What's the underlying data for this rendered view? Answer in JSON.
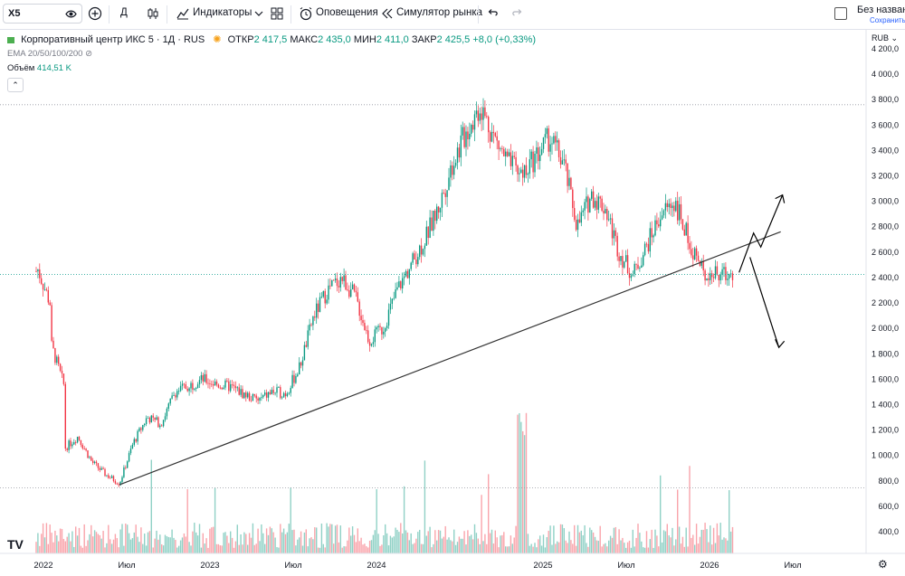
{
  "toolbar": {
    "symbol": "X5",
    "interval": "Д",
    "indicators_label": "Индикаторы",
    "alerts_label": "Оповещения",
    "replay_label": "Симулятор рынка",
    "layout_title": "Без названи",
    "layout_sub": "Сохранить"
  },
  "legend": {
    "title": "Корпоративный центр ИКС 5 · 1Д · RUS",
    "open_label": "ОТКР",
    "open": "2 417,5",
    "high_label": "МАКС",
    "high": "2 435,0",
    "low_label": "МИН",
    "low": "2 411,0",
    "close_label": "ЗАКР",
    "close": "2 425,5",
    "change": "+8,0 (+0,33%)",
    "ema": "EMA 20/50/100/200",
    "volume_label": "Объём",
    "volume_value": "414,51 K"
  },
  "currency": "RUB",
  "colors": {
    "up": "#089981",
    "down": "#f23645",
    "trend": "#333333",
    "price_tag": "#26a69a"
  },
  "chart_data": {
    "type": "candlestick",
    "price_axis_ticks": [
      "4 200,0",
      "4 000,0",
      "3 800,0",
      "3 600,0",
      "3 400,0",
      "3 200,0",
      "3 000,0",
      "2 800,0",
      "2 600,0",
      "2 400,0",
      "2 200,0",
      "2 000,0",
      "1 800,0",
      "1 600,0",
      "1 400,0",
      "1 200,0",
      "1 000,0",
      "800,0",
      "600,0",
      "400,0"
    ],
    "time_axis_ticks": [
      "2022",
      "Июл",
      "2023",
      "Июл",
      "2024",
      "2025",
      "Июл",
      "2026",
      "Июл"
    ],
    "last_price": "2 425,5",
    "ylim": [
      300,
      4300
    ],
    "close_path": [
      [
        "2022-01",
        2450
      ],
      [
        "2022-01",
        2500
      ],
      [
        "2022-02",
        2200
      ],
      [
        "2022-02",
        1900
      ],
      [
        "2022-03",
        1550
      ],
      [
        "2022-03",
        1050
      ],
      [
        "2022-04",
        1150
      ],
      [
        "2022-05",
        950
      ],
      [
        "2022-06",
        850
      ],
      [
        "2022-07",
        780
      ],
      [
        "2022-08",
        1100
      ],
      [
        "2022-09",
        1300
      ],
      [
        "2022-10",
        1250
      ],
      [
        "2022-11",
        1500
      ],
      [
        "2022-12",
        1550
      ],
      [
        "2023-01",
        1600
      ],
      [
        "2023-02",
        1560
      ],
      [
        "2023-03",
        1540
      ],
      [
        "2023-04",
        1480
      ],
      [
        "2023-05",
        1430
      ],
      [
        "2023-06",
        1500
      ],
      [
        "2023-07",
        1490
      ],
      [
        "2023-08",
        1700
      ],
      [
        "2023-09",
        2100
      ],
      [
        "2023-10",
        2300
      ],
      [
        "2023-11",
        2400
      ],
      [
        "2023-12",
        2250
      ],
      [
        "2024-01",
        1900
      ],
      [
        "2024-02",
        2000
      ],
      [
        "2024-03",
        2300
      ],
      [
        "2024-04",
        2500
      ],
      [
        "2024-05",
        2700
      ],
      [
        "2024-06",
        2950
      ],
      [
        "2024-07",
        3300
      ],
      [
        "2024-08",
        3550
      ],
      [
        "2024-09",
        3750
      ],
      [
        "2024-10",
        3500
      ],
      [
        "2024-11",
        3300
      ],
      [
        "2024-12",
        3200
      ],
      [
        "2025-01",
        3350
      ],
      [
        "2025-02",
        3500
      ],
      [
        "2025-03",
        3300
      ],
      [
        "2025-04",
        2800
      ],
      [
        "2025-05",
        3050
      ],
      [
        "2025-06",
        2950
      ],
      [
        "2025-07",
        2600
      ],
      [
        "2025-08",
        2420
      ],
      [
        "2025-09",
        2650
      ],
      [
        "2025-10",
        2900
      ],
      [
        "2025-11",
        3000
      ],
      [
        "2025-12",
        2700
      ],
      [
        "2026-01",
        2450
      ],
      [
        "2026-02",
        2420
      ],
      [
        "2026-03",
        2425
      ]
    ],
    "trendline": {
      "from": [
        "2022-07",
        770
      ],
      "to": [
        "2026-06",
        2760
      ]
    },
    "forecast_arrows": {
      "start": [
        "2026-03",
        2440
      ],
      "up_target": 3050,
      "down_target": 1850
    },
    "horizontal_lines": [
      3760,
      745,
      2425
    ]
  }
}
